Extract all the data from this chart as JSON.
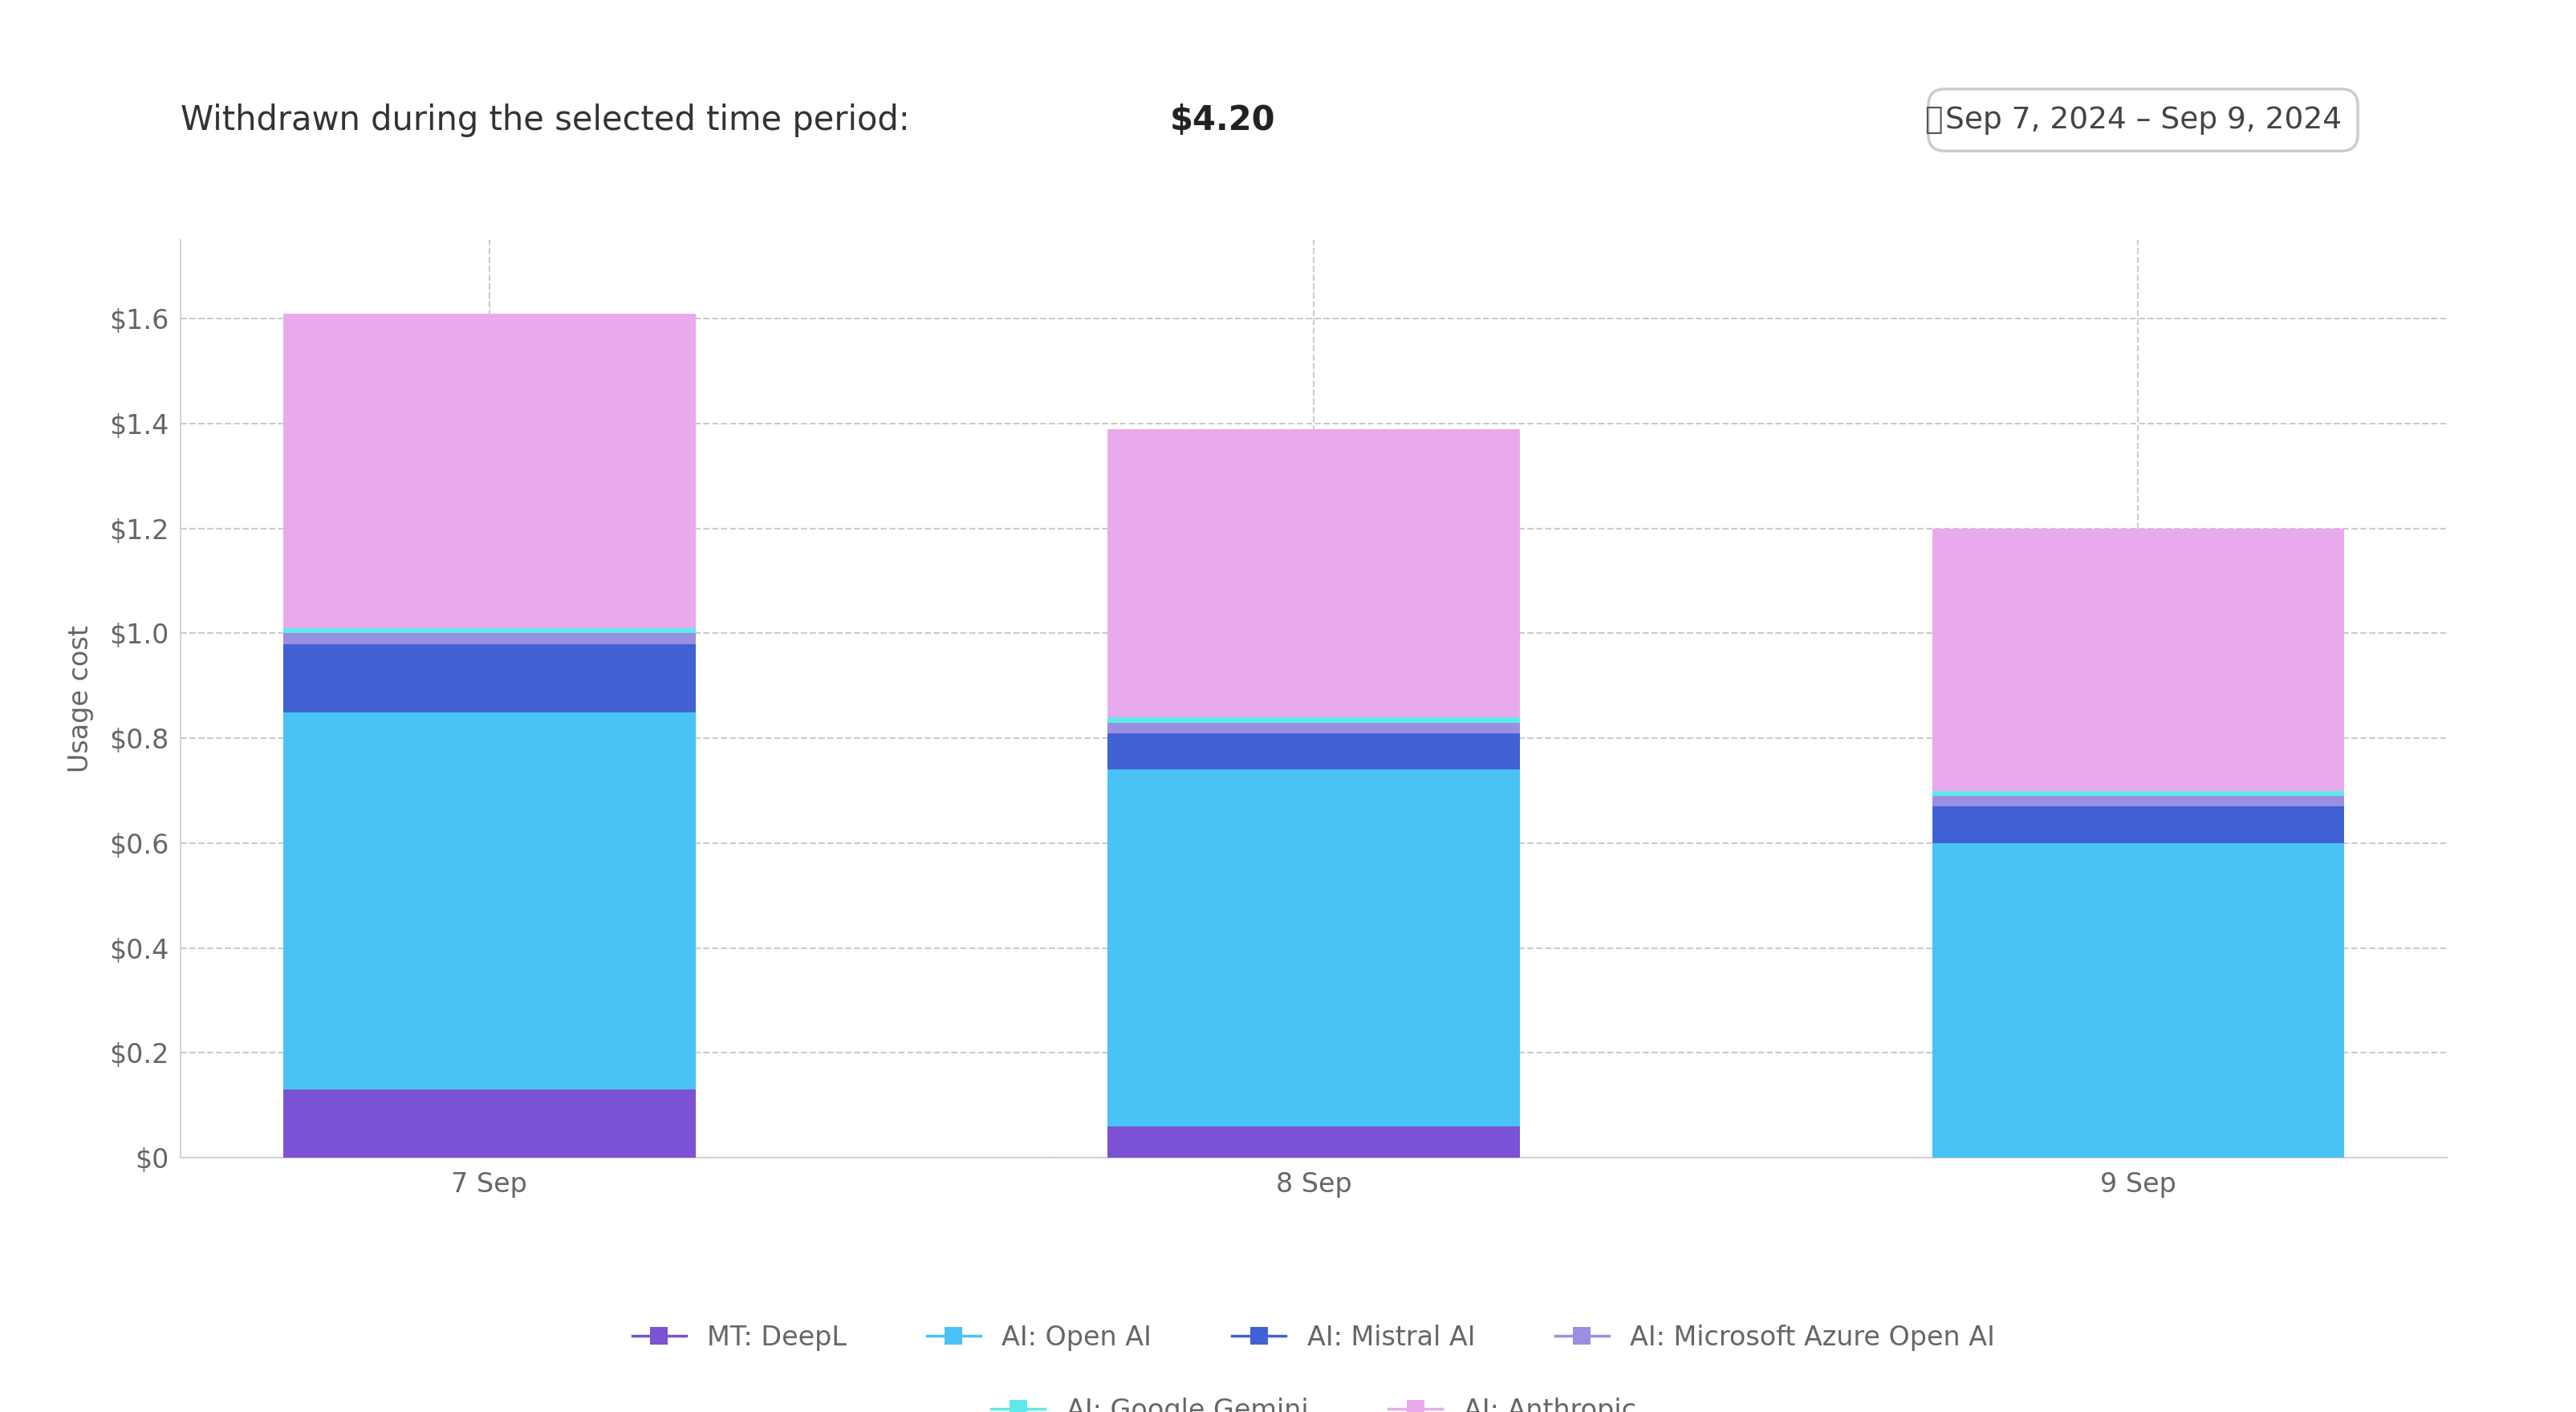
{
  "title_text": "Withdrawn during the selected time period:  ",
  "title_amount": "$4.20",
  "date_range": "Sep 7, 2024 – Sep 9, 2024",
  "ylabel": "Usage cost",
  "categories": [
    "7 Sep",
    "8 Sep",
    "9 Sep"
  ],
  "series": {
    "MT: DeepL": [
      0.13,
      0.06,
      0.0
    ],
    "AI: Open AI": [
      0.72,
      0.68,
      0.6
    ],
    "AI: Mistral AI": [
      0.13,
      0.07,
      0.07
    ],
    "AI: Microsoft Azure Open AI": [
      0.02,
      0.02,
      0.02
    ],
    "AI: Google Gemini": [
      0.01,
      0.01,
      0.01
    ],
    "AI: Anthropic": [
      0.6,
      0.55,
      0.5
    ]
  },
  "colors": {
    "MT: DeepL": "#7B52D3",
    "AI: Open AI": "#49C3F5",
    "AI: Mistral AI": "#4261D4",
    "AI: Microsoft Azure Open AI": "#9B8FE0",
    "AI: Google Gemini": "#5DEAEA",
    "AI: Anthropic": "#E8AAED"
  },
  "yticks": [
    0.0,
    0.2,
    0.4,
    0.6,
    0.8,
    1.0,
    1.2,
    1.4,
    1.6
  ],
  "ylim": [
    0,
    1.75
  ],
  "background_color": "#FFFFFF",
  "plot_bg_color": "#FFFFFF",
  "grid_color": "#CCCCCC",
  "text_color": "#666666",
  "bar_width": 0.5,
  "legend_row1": [
    "MT: DeepL",
    "AI: Open AI",
    "AI: Mistral AI",
    "AI: Microsoft Azure Open AI"
  ],
  "legend_row2": [
    "AI: Google Gemini",
    "AI: Anthropic"
  ]
}
